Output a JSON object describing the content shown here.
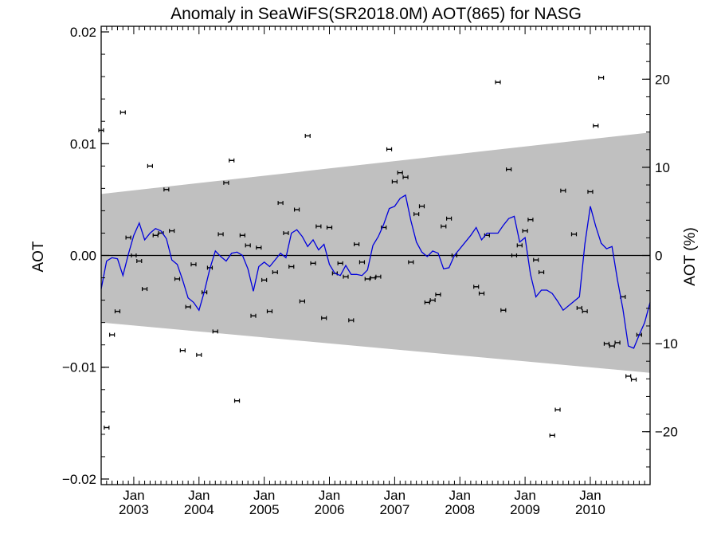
{
  "chart_data": {
    "type": "scatter",
    "title": "Anomaly in SeaWiFS(SR2018.0M) AOT(865) for NASG",
    "ylabel": "AOT",
    "ylabel_right": "AOT (%)",
    "xlim": [
      "2002-07-01",
      "2010-12-01"
    ],
    "ylim": [
      -0.0205,
      0.0205
    ],
    "ylim_right_percent": [
      -26,
      26
    ],
    "x_month_label": "Jan",
    "x_years": [
      "2003",
      "2004",
      "2005",
      "2006",
      "2007",
      "2008",
      "2009",
      "2010"
    ],
    "y_ticks": [
      {
        "value": 0.02,
        "label": "0.02"
      },
      {
        "value": 0.01,
        "label": "0.01"
      },
      {
        "value": 0.0,
        "label": "0.00"
      },
      {
        "value": -0.01,
        "label": "−0.01"
      },
      {
        "value": -0.02,
        "label": "−0.02"
      }
    ],
    "y_right_ticks": [
      {
        "value": 20,
        "label": "20"
      },
      {
        "value": 10,
        "label": "10"
      },
      {
        "value": 0,
        "label": "0"
      },
      {
        "value": -10,
        "label": "−10"
      },
      {
        "value": -20,
        "label": "−20"
      }
    ],
    "zero_line": true,
    "band": {
      "color": "#c0c0c0",
      "x": [
        "2002-07",
        "2010-12"
      ],
      "upper": [
        0.0055,
        0.011
      ],
      "lower": [
        -0.006,
        -0.0105
      ]
    },
    "series": [
      {
        "kind": "points_with_errorbars",
        "color": "#000000",
        "points": [
          {
            "x": "2002-07",
            "y": 0.0112
          },
          {
            "x": "2002-08",
            "y": -0.0154
          },
          {
            "x": "2002-09",
            "y": -0.0071
          },
          {
            "x": "2002-10",
            "y": -0.005
          },
          {
            "x": "2002-11",
            "y": 0.0128
          },
          {
            "x": "2002-12",
            "y": 0.0016
          },
          {
            "x": "2003-01",
            "y": 0.0
          },
          {
            "x": "2003-02",
            "y": -0.0005
          },
          {
            "x": "2003-03",
            "y": -0.003
          },
          {
            "x": "2003-04",
            "y": 0.008
          },
          {
            "x": "2003-05",
            "y": 0.0018
          },
          {
            "x": "2003-06",
            "y": 0.002
          },
          {
            "x": "2003-07",
            "y": 0.0059
          },
          {
            "x": "2003-08",
            "y": 0.0022
          },
          {
            "x": "2003-09",
            "y": -0.0021
          },
          {
            "x": "2003-10",
            "y": -0.0085
          },
          {
            "x": "2003-11",
            "y": -0.0046
          },
          {
            "x": "2003-12",
            "y": -0.0008
          },
          {
            "x": "2004-01",
            "y": -0.0089
          },
          {
            "x": "2004-02",
            "y": -0.0033
          },
          {
            "x": "2004-03",
            "y": -0.0011
          },
          {
            "x": "2004-04",
            "y": -0.0068
          },
          {
            "x": "2004-05",
            "y": 0.0019
          },
          {
            "x": "2004-06",
            "y": 0.0065
          },
          {
            "x": "2004-07",
            "y": 0.0085
          },
          {
            "x": "2004-08",
            "y": -0.013
          },
          {
            "x": "2004-09",
            "y": 0.0018
          },
          {
            "x": "2004-10",
            "y": 0.0009
          },
          {
            "x": "2004-11",
            "y": -0.0054
          },
          {
            "x": "2004-12",
            "y": 0.0007
          },
          {
            "x": "2005-01",
            "y": -0.0022
          },
          {
            "x": "2005-02",
            "y": -0.005
          },
          {
            "x": "2005-03",
            "y": -0.0015
          },
          {
            "x": "2005-04",
            "y": 0.0047
          },
          {
            "x": "2005-05",
            "y": 0.002
          },
          {
            "x": "2005-06",
            "y": -0.001
          },
          {
            "x": "2005-07",
            "y": 0.0041
          },
          {
            "x": "2005-08",
            "y": -0.0041
          },
          {
            "x": "2005-09",
            "y": 0.0107
          },
          {
            "x": "2005-10",
            "y": -0.0007
          },
          {
            "x": "2005-11",
            "y": 0.0026
          },
          {
            "x": "2005-12",
            "y": -0.0056
          },
          {
            "x": "2006-01",
            "y": 0.0025
          },
          {
            "x": "2006-02",
            "y": -0.0016
          },
          {
            "x": "2006-03",
            "y": -0.0007
          },
          {
            "x": "2006-04",
            "y": -0.0019
          },
          {
            "x": "2006-05",
            "y": -0.0058
          },
          {
            "x": "2006-06",
            "y": 0.001
          },
          {
            "x": "2006-07",
            "y": -0.0006
          },
          {
            "x": "2006-08",
            "y": -0.0021
          },
          {
            "x": "2006-09",
            "y": -0.002
          },
          {
            "x": "2006-10",
            "y": -0.0019
          },
          {
            "x": "2006-11",
            "y": 0.0025
          },
          {
            "x": "2006-12",
            "y": 0.0095
          },
          {
            "x": "2007-01",
            "y": 0.0066
          },
          {
            "x": "2007-02",
            "y": 0.0074
          },
          {
            "x": "2007-03",
            "y": 0.007
          },
          {
            "x": "2007-04",
            "y": -0.0006
          },
          {
            "x": "2007-05",
            "y": 0.0037
          },
          {
            "x": "2007-06",
            "y": 0.0044
          },
          {
            "x": "2007-07",
            "y": -0.0042
          },
          {
            "x": "2007-08",
            "y": -0.004
          },
          {
            "x": "2007-09",
            "y": -0.0035
          },
          {
            "x": "2007-10",
            "y": 0.0026
          },
          {
            "x": "2007-11",
            "y": 0.0033
          },
          {
            "x": "2007-12",
            "y": 0.0
          },
          {
            "x": "2008-04",
            "y": -0.0028
          },
          {
            "x": "2008-05",
            "y": -0.0034
          },
          {
            "x": "2008-06",
            "y": 0.0018
          },
          {
            "x": "2008-08",
            "y": 0.0155
          },
          {
            "x": "2008-09",
            "y": -0.0049
          },
          {
            "x": "2008-10",
            "y": 0.0077
          },
          {
            "x": "2008-11",
            "y": 0.0
          },
          {
            "x": "2008-12",
            "y": 0.0009
          },
          {
            "x": "2009-01",
            "y": 0.0022
          },
          {
            "x": "2009-02",
            "y": 0.0032
          },
          {
            "x": "2009-03",
            "y": -0.0004
          },
          {
            "x": "2009-04",
            "y": -0.0015
          },
          {
            "x": "2009-06",
            "y": -0.0161
          },
          {
            "x": "2009-07",
            "y": -0.0138
          },
          {
            "x": "2009-08",
            "y": 0.0058
          },
          {
            "x": "2009-10",
            "y": 0.0019
          },
          {
            "x": "2009-11",
            "y": -0.0047
          },
          {
            "x": "2009-12",
            "y": -0.005
          },
          {
            "x": "2010-01",
            "y": 0.0057
          },
          {
            "x": "2010-02",
            "y": 0.0116
          },
          {
            "x": "2010-03",
            "y": 0.0159
          },
          {
            "x": "2010-04",
            "y": -0.0079
          },
          {
            "x": "2010-05",
            "y": -0.0081
          },
          {
            "x": "2010-06",
            "y": -0.0078
          },
          {
            "x": "2010-07",
            "y": -0.0037
          },
          {
            "x": "2010-08",
            "y": -0.0108
          },
          {
            "x": "2010-09",
            "y": -0.0111
          },
          {
            "x": "2010-10",
            "y": -0.0071
          }
        ]
      },
      {
        "kind": "line",
        "color": "#0000dd",
        "points": [
          {
            "x": "2002-07",
            "y": -0.003
          },
          {
            "x": "2002-08",
            "y": -0.0005
          },
          {
            "x": "2002-09",
            "y": -0.0002
          },
          {
            "x": "2002-10",
            "y": -0.0003
          },
          {
            "x": "2002-11",
            "y": -0.0018
          },
          {
            "x": "2002-12",
            "y": 0.0001
          },
          {
            "x": "2003-01",
            "y": 0.0018
          },
          {
            "x": "2003-02",
            "y": 0.0029
          },
          {
            "x": "2003-03",
            "y": 0.0014
          },
          {
            "x": "2003-04",
            "y": 0.002
          },
          {
            "x": "2003-05",
            "y": 0.0024
          },
          {
            "x": "2003-06",
            "y": 0.0022
          },
          {
            "x": "2003-07",
            "y": 0.0015
          },
          {
            "x": "2003-08",
            "y": -0.0004
          },
          {
            "x": "2003-09",
            "y": -0.0008
          },
          {
            "x": "2003-10",
            "y": -0.0022
          },
          {
            "x": "2003-11",
            "y": -0.0038
          },
          {
            "x": "2003-12",
            "y": -0.0042
          },
          {
            "x": "2004-01",
            "y": -0.0049
          },
          {
            "x": "2004-02",
            "y": -0.0032
          },
          {
            "x": "2004-03",
            "y": -0.0012
          },
          {
            "x": "2004-04",
            "y": 0.0004
          },
          {
            "x": "2004-05",
            "y": -0.0001
          },
          {
            "x": "2004-06",
            "y": -0.0005
          },
          {
            "x": "2004-07",
            "y": 0.0002
          },
          {
            "x": "2004-08",
            "y": 0.0003
          },
          {
            "x": "2004-09",
            "y": 0.0
          },
          {
            "x": "2004-10",
            "y": -0.0012
          },
          {
            "x": "2004-11",
            "y": -0.0032
          },
          {
            "x": "2004-12",
            "y": -0.001
          },
          {
            "x": "2005-01",
            "y": -0.0006
          },
          {
            "x": "2005-02",
            "y": -0.001
          },
          {
            "x": "2005-03",
            "y": -0.0004
          },
          {
            "x": "2005-04",
            "y": 0.0002
          },
          {
            "x": "2005-05",
            "y": -0.0002
          },
          {
            "x": "2005-06",
            "y": 0.002
          },
          {
            "x": "2005-07",
            "y": 0.0023
          },
          {
            "x": "2005-08",
            "y": 0.0017
          },
          {
            "x": "2005-09",
            "y": 0.0008
          },
          {
            "x": "2005-10",
            "y": 0.0014
          },
          {
            "x": "2005-11",
            "y": 0.0005
          },
          {
            "x": "2005-12",
            "y": 0.001
          },
          {
            "x": "2006-01",
            "y": -0.0008
          },
          {
            "x": "2006-02",
            "y": -0.0016
          },
          {
            "x": "2006-03",
            "y": -0.0018
          },
          {
            "x": "2006-04",
            "y": -0.0009
          },
          {
            "x": "2006-05",
            "y": -0.0017
          },
          {
            "x": "2006-06",
            "y": -0.0017
          },
          {
            "x": "2006-07",
            "y": -0.0018
          },
          {
            "x": "2006-08",
            "y": -0.0013
          },
          {
            "x": "2006-09",
            "y": 0.0009
          },
          {
            "x": "2006-10",
            "y": 0.0017
          },
          {
            "x": "2006-11",
            "y": 0.0028
          },
          {
            "x": "2006-12",
            "y": 0.0042
          },
          {
            "x": "2007-01",
            "y": 0.0044
          },
          {
            "x": "2007-02",
            "y": 0.0051
          },
          {
            "x": "2007-03",
            "y": 0.0054
          },
          {
            "x": "2007-04",
            "y": 0.0031
          },
          {
            "x": "2007-05",
            "y": 0.0012
          },
          {
            "x": "2007-06",
            "y": 0.0003
          },
          {
            "x": "2007-07",
            "y": -0.0001
          },
          {
            "x": "2007-08",
            "y": 0.0004
          },
          {
            "x": "2007-09",
            "y": 0.0002
          },
          {
            "x": "2007-10",
            "y": -0.0012
          },
          {
            "x": "2007-11",
            "y": -0.0011
          },
          {
            "x": "2007-12",
            "y": 0.0
          },
          {
            "x": "2008-03",
            "y": 0.0018
          },
          {
            "x": "2008-04",
            "y": 0.0025
          },
          {
            "x": "2008-05",
            "y": 0.0014
          },
          {
            "x": "2008-06",
            "y": 0.002
          },
          {
            "x": "2008-08",
            "y": 0.002
          },
          {
            "x": "2008-09",
            "y": 0.0027
          },
          {
            "x": "2008-10",
            "y": 0.0033
          },
          {
            "x": "2008-11",
            "y": 0.0035
          },
          {
            "x": "2008-12",
            "y": 0.0012
          },
          {
            "x": "2009-01",
            "y": 0.0016
          },
          {
            "x": "2009-02",
            "y": -0.0017
          },
          {
            "x": "2009-03",
            "y": -0.0037
          },
          {
            "x": "2009-04",
            "y": -0.0031
          },
          {
            "x": "2009-05",
            "y": -0.0031
          },
          {
            "x": "2009-06",
            "y": -0.0034
          },
          {
            "x": "2009-07",
            "y": -0.0041
          },
          {
            "x": "2009-08",
            "y": -0.0049
          },
          {
            "x": "2009-11",
            "y": -0.0037
          },
          {
            "x": "2009-12",
            "y": 0.001
          },
          {
            "x": "2010-01",
            "y": 0.0044
          },
          {
            "x": "2010-02",
            "y": 0.0026
          },
          {
            "x": "2010-03",
            "y": 0.0011
          },
          {
            "x": "2010-04",
            "y": 0.0006
          },
          {
            "x": "2010-05",
            "y": 0.0008
          },
          {
            "x": "2010-06",
            "y": -0.0022
          },
          {
            "x": "2010-07",
            "y": -0.0048
          },
          {
            "x": "2010-08",
            "y": -0.0081
          },
          {
            "x": "2010-09",
            "y": -0.0083
          },
          {
            "x": "2010-10",
            "y": -0.0071
          },
          {
            "x": "2010-11",
            "y": -0.006
          },
          {
            "x": "2010-12",
            "y": -0.0042
          }
        ]
      }
    ]
  }
}
